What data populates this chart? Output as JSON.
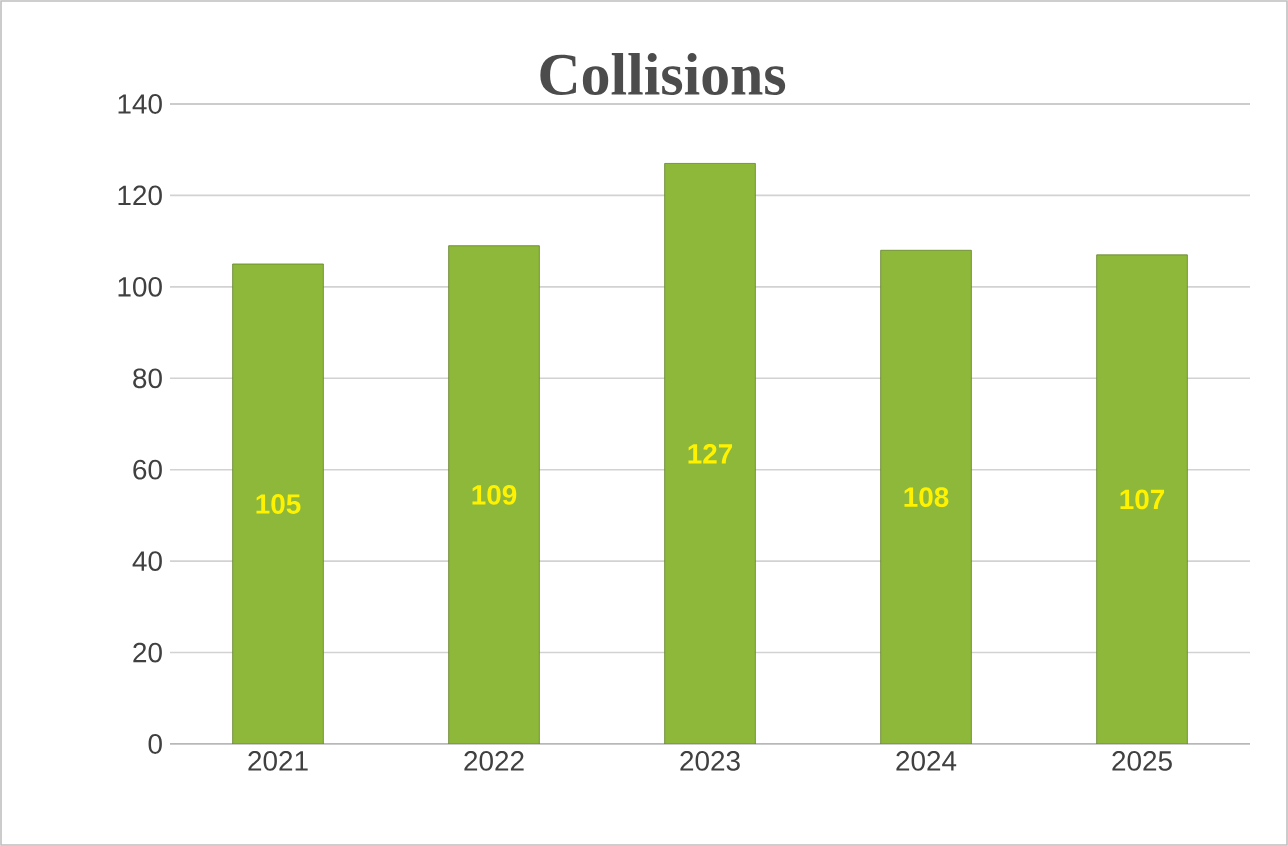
{
  "chart_data": {
    "type": "bar",
    "title": "Collisions",
    "categories": [
      "2021",
      "2022",
      "2023",
      "2024",
      "2025"
    ],
    "values": [
      105,
      109,
      127,
      108,
      107
    ],
    "color": "#8db83a",
    "ylim": [
      0,
      140
    ],
    "yticks": [
      0,
      20,
      40,
      60,
      80,
      100,
      120,
      140
    ],
    "grid": "y",
    "data_labels": true
  }
}
